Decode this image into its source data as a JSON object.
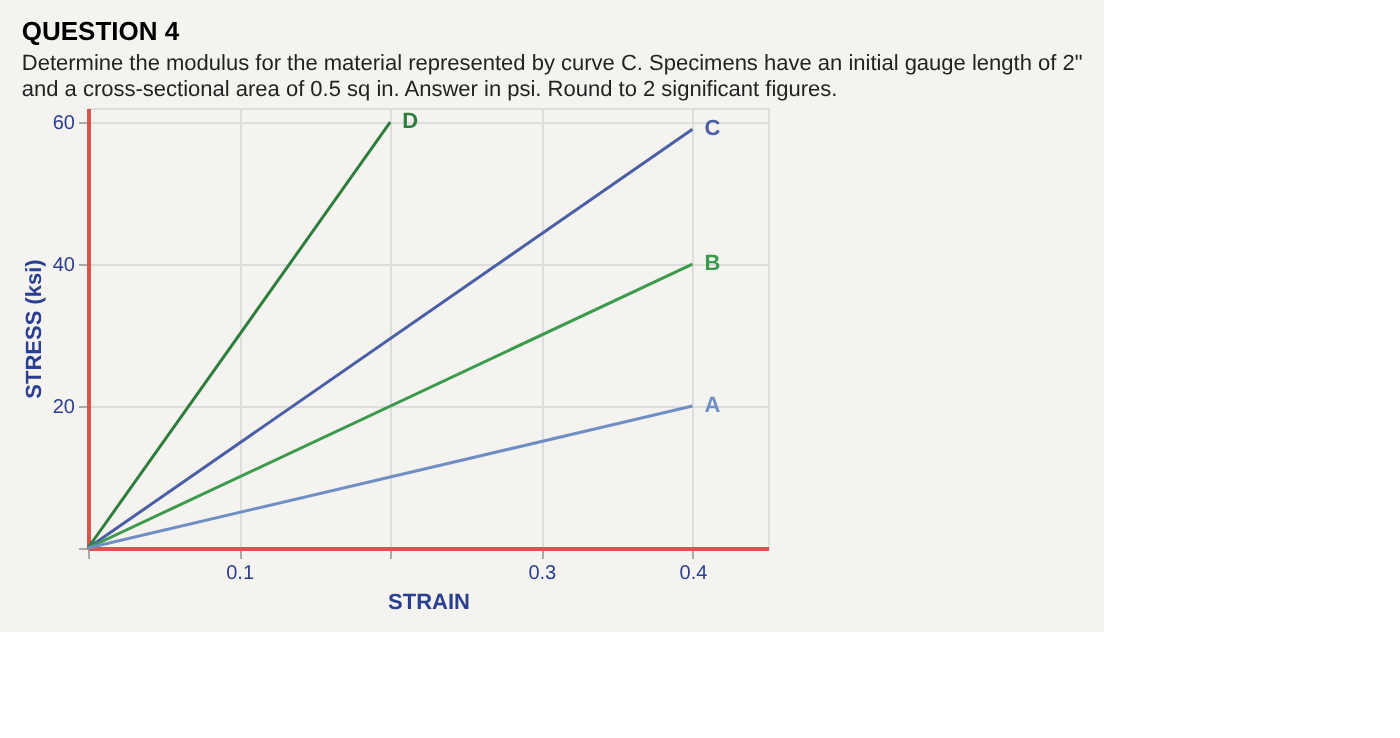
{
  "chart_data": {
    "type": "line",
    "title": "QUESTION 4",
    "subtitle": "Determine the modulus for the material represented by curve C. Specimens have an initial gauge length of 2\" and a cross-sectional area of 0.5 sq in. Answer in psi. Round to 2 significant figures.",
    "xlabel": "STRAIN",
    "ylabel": "STRESS (ksi)",
    "series": [
      {
        "name": "D",
        "color": "#2f7d3c",
        "x": [
          0,
          0.2
        ],
        "values": [
          0,
          60
        ]
      },
      {
        "name": "C",
        "color": "#4a5ea6",
        "x": [
          0,
          0.4
        ],
        "values": [
          0,
          59
        ]
      },
      {
        "name": "B",
        "color": "#3b9a4c",
        "x": [
          0,
          0.4
        ],
        "values": [
          0,
          40
        ]
      },
      {
        "name": "A",
        "color": "#6f8fc4",
        "x": [
          0,
          0.4
        ],
        "values": [
          0,
          20
        ]
      }
    ],
    "xlim": [
      0,
      0.45
    ],
    "ylim": [
      0,
      62
    ],
    "xticks": [
      {
        "value": 0,
        "label": null
      },
      0.1,
      {
        "value": 0.2,
        "label": null
      },
      0.3,
      0.4
    ],
    "yticks": [
      {
        "value": 0,
        "label": null
      },
      20,
      40,
      60
    ],
    "grid": true,
    "legend": false,
    "marker": "none",
    "line_style": "solid"
  }
}
